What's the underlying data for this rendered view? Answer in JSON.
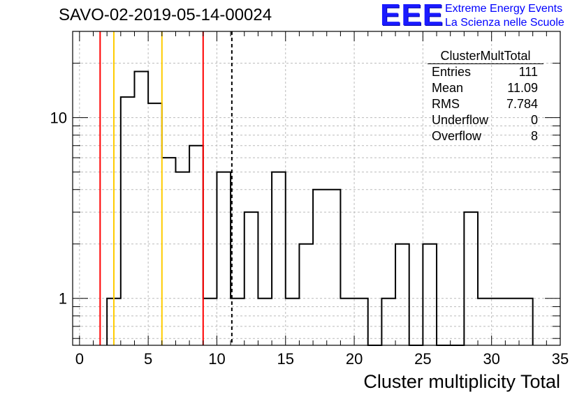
{
  "header": {
    "title": "SAVO-02-2019-05-14-00024",
    "logo_text": "EEE",
    "org_line1": "Extreme Energy Events",
    "org_line2": "La Scienza nelle Scuole"
  },
  "stats": {
    "name": "ClusterMultTotal",
    "rows": [
      {
        "label": "Entries",
        "value": "111"
      },
      {
        "label": "Mean",
        "value": "11.09"
      },
      {
        "label": "RMS",
        "value": "7.784"
      },
      {
        "label": "Underflow",
        "value": "0"
      },
      {
        "label": "Overflow",
        "value": "8"
      }
    ]
  },
  "chart_data": {
    "type": "histogram",
    "xlabel": "Cluster multiplicity Total",
    "ylabel": "",
    "xlim": [
      -0.5,
      35
    ],
    "ylim": [
      0.55,
      30
    ],
    "log_y": true,
    "grid": true,
    "x_ticks": [
      0,
      5,
      10,
      15,
      20,
      25,
      30,
      35
    ],
    "y_ticks": [
      1,
      10
    ],
    "bin_width": 1,
    "bins": [
      {
        "x": 2.5,
        "value": 1
      },
      {
        "x": 3.5,
        "value": 13
      },
      {
        "x": 4.5,
        "value": 18
      },
      {
        "x": 5.5,
        "value": 12
      },
      {
        "x": 6.5,
        "value": 6
      },
      {
        "x": 7.5,
        "value": 5
      },
      {
        "x": 8.5,
        "value": 7
      },
      {
        "x": 9.5,
        "value": 1
      },
      {
        "x": 10.5,
        "value": 5
      },
      {
        "x": 11.5,
        "value": 1
      },
      {
        "x": 12.5,
        "value": 3
      },
      {
        "x": 13.5,
        "value": 1
      },
      {
        "x": 14.5,
        "value": 5
      },
      {
        "x": 15.5,
        "value": 1
      },
      {
        "x": 16.5,
        "value": 2
      },
      {
        "x": 17.5,
        "value": 4
      },
      {
        "x": 18.5,
        "value": 4
      },
      {
        "x": 19.5,
        "value": 1
      },
      {
        "x": 20.5,
        "value": 1
      },
      {
        "x": 21.5,
        "value": 0
      },
      {
        "x": 22.5,
        "value": 1
      },
      {
        "x": 23.5,
        "value": 2
      },
      {
        "x": 24.5,
        "value": 0
      },
      {
        "x": 25.5,
        "value": 2
      },
      {
        "x": 26.5,
        "value": 0
      },
      {
        "x": 27.5,
        "value": 0
      },
      {
        "x": 28.5,
        "value": 3
      },
      {
        "x": 29.5,
        "value": 1
      },
      {
        "x": 30.5,
        "value": 1
      },
      {
        "x": 31.5,
        "value": 1
      },
      {
        "x": 32.5,
        "value": 1
      }
    ],
    "vertical_lines": [
      {
        "x": 1.5,
        "color": "#ff0000",
        "style": "solid"
      },
      {
        "x": 2.5,
        "color": "#ffcc00",
        "style": "solid"
      },
      {
        "x": 6.0,
        "color": "#ffcc00",
        "style": "solid"
      },
      {
        "x": 9.0,
        "color": "#ff0000",
        "style": "solid"
      },
      {
        "x": 11.09,
        "color": "#000000",
        "style": "dashed"
      }
    ]
  }
}
